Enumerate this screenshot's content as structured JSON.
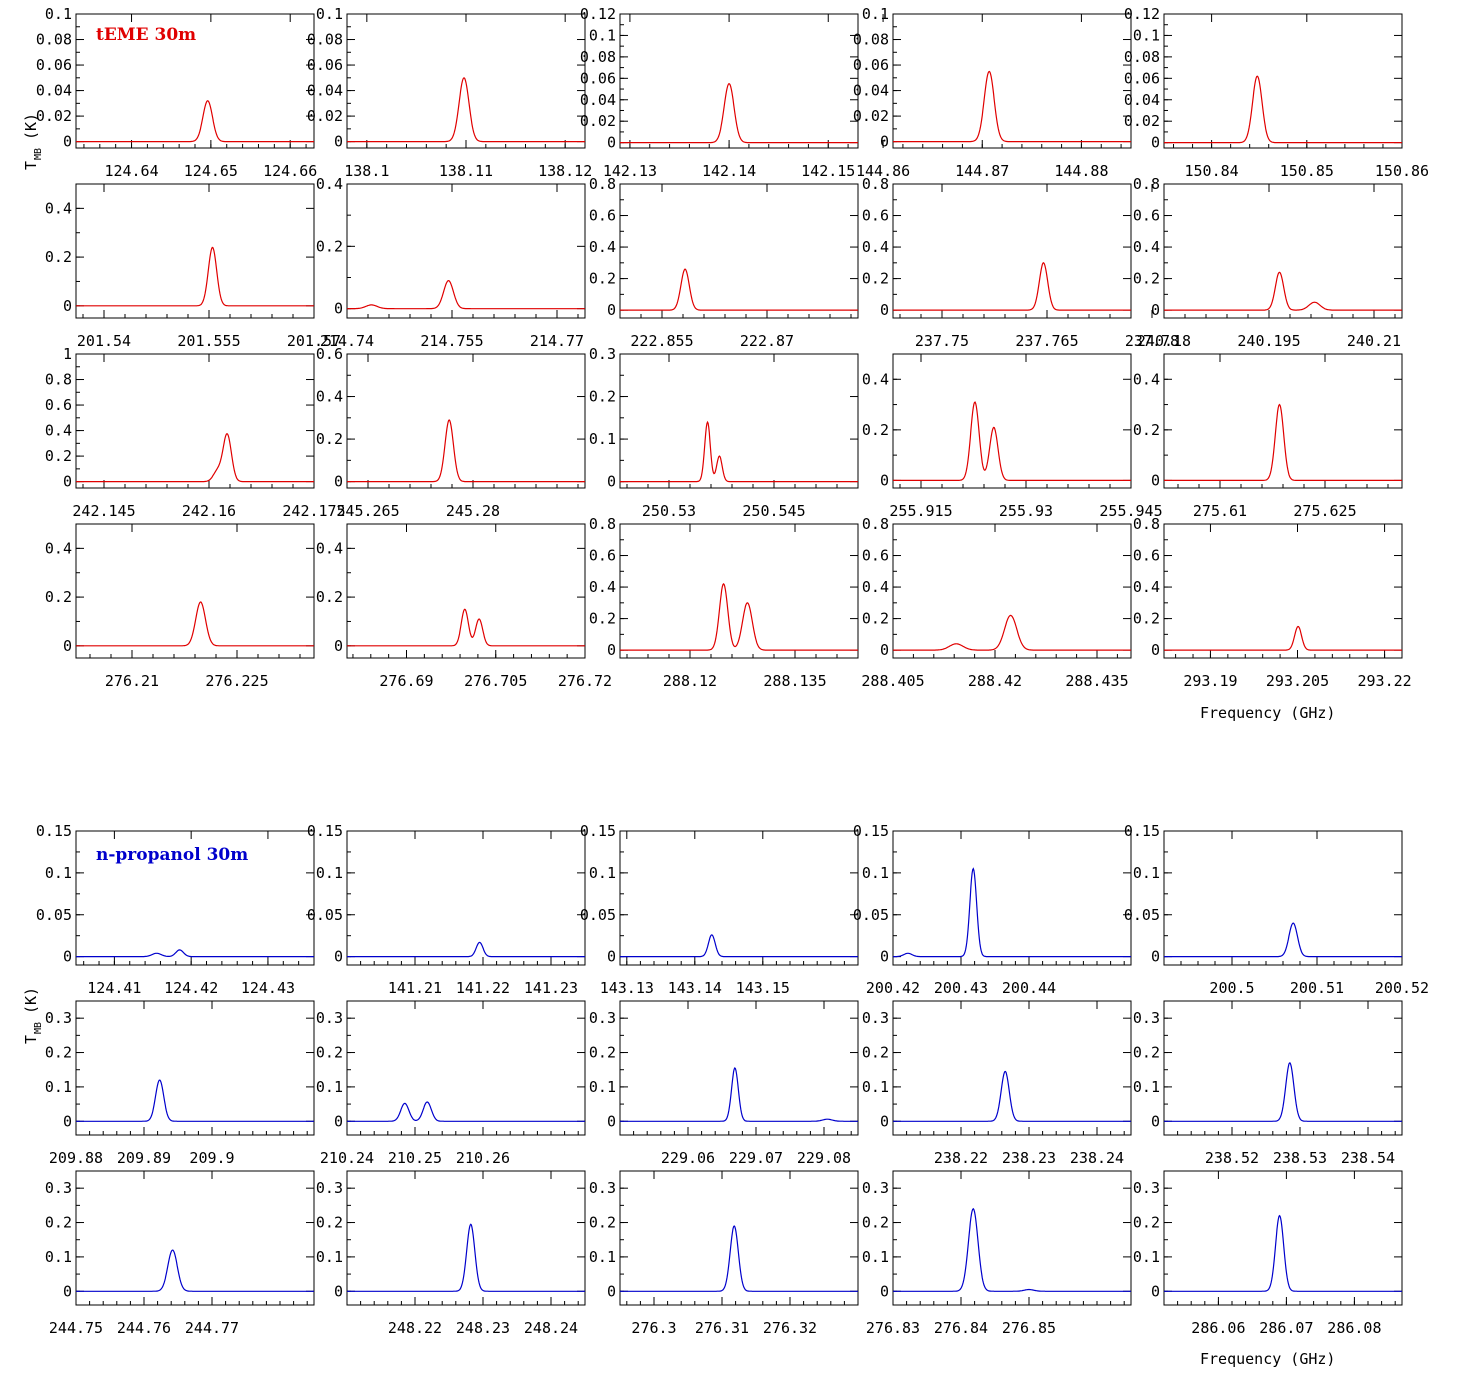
{
  "figure": {
    "xlabel": "Frequency (GHz)",
    "ylabel_main": "T",
    "ylabel_sub": "MB",
    "ylabel_unit": "(K)"
  },
  "colors": {
    "data": "#000000",
    "teme_model": "#e00000",
    "npropanol_model": "#0000cc"
  },
  "chart_data": [
    {
      "type": "line",
      "title": "tEME 30m",
      "title_color": "#e00000",
      "grid": false,
      "panels": [
        {
          "xlim": [
            124.633,
            124.663
          ],
          "ylim": [
            -0.005,
            0.1
          ],
          "yticks": [
            0,
            0.02,
            0.04,
            0.06,
            0.08,
            0.1
          ],
          "xticks": [
            124.64,
            124.65,
            124.66
          ],
          "lines": [
            {
              "x": 124.6496,
              "a": 0.032,
              "w": 0.0006
            }
          ]
        },
        {
          "xlim": [
            138.098,
            138.122
          ],
          "ylim": [
            -0.005,
            0.1
          ],
          "yticks": [
            0,
            0.02,
            0.04,
            0.06,
            0.08,
            0.1
          ],
          "xticks": [
            138.1,
            138.11,
            138.12
          ],
          "lines": [
            {
              "x": 138.1098,
              "a": 0.05,
              "w": 0.0005
            }
          ]
        },
        {
          "xlim": [
            142.129,
            142.153
          ],
          "ylim": [
            -0.005,
            0.12
          ],
          "yticks": [
            0,
            0.02,
            0.04,
            0.06,
            0.08,
            0.1,
            0.12
          ],
          "xticks": [
            142.13,
            142.14,
            142.15
          ],
          "lines": [
            {
              "x": 142.14,
              "a": 0.055,
              "w": 0.0005
            }
          ]
        },
        {
          "xlim": [
            144.861,
            144.885
          ],
          "ylim": [
            -0.005,
            0.1
          ],
          "yticks": [
            0,
            0.02,
            0.04,
            0.06,
            0.08,
            0.1
          ],
          "xticks": [
            144.86,
            144.87,
            144.88
          ],
          "lines": [
            {
              "x": 144.8707,
              "a": 0.055,
              "w": 0.0005
            }
          ]
        },
        {
          "xlim": [
            150.835,
            150.86
          ],
          "ylim": [
            -0.005,
            0.12
          ],
          "yticks": [
            0,
            0.02,
            0.04,
            0.06,
            0.08,
            0.1,
            0.12
          ],
          "xticks": [
            150.84,
            150.85,
            150.86
          ],
          "lines": [
            {
              "x": 150.8448,
              "a": 0.062,
              "w": 0.0005
            }
          ]
        },
        {
          "xlim": [
            201.536,
            201.57
          ],
          "ylim": [
            -0.05,
            0.5
          ],
          "yticks": [
            0,
            0.2,
            0.4
          ],
          "xticks": [
            201.54,
            201.555,
            201.57
          ],
          "lines": [
            {
              "x": 201.5555,
              "a": 0.24,
              "w": 0.0006
            }
          ]
        },
        {
          "xlim": [
            214.74,
            214.774
          ],
          "ylim": [
            -0.03,
            0.4
          ],
          "yticks": [
            0,
            0.2,
            0.4
          ],
          "xticks": [
            214.74,
            214.755,
            214.77
          ],
          "lines": [
            {
              "x": 214.7545,
              "a": 0.09,
              "w": 0.0007
            },
            {
              "x": 214.7435,
              "a": 0.012,
              "w": 0.0008
            }
          ]
        },
        {
          "xlim": [
            222.849,
            222.883
          ],
          "ylim": [
            -0.05,
            0.8
          ],
          "yticks": [
            0,
            0.2,
            0.4,
            0.6,
            0.8
          ],
          "xticks": [
            222.855,
            222.87
          ],
          "lines": [
            {
              "x": 222.8583,
              "a": 0.26,
              "w": 0.0006
            }
          ]
        },
        {
          "xlim": [
            237.743,
            237.777
          ],
          "ylim": [
            -0.05,
            0.8
          ],
          "yticks": [
            0,
            0.2,
            0.4,
            0.6,
            0.8
          ],
          "xticks": [
            237.75,
            237.765,
            237.78
          ],
          "lines": [
            {
              "x": 237.7645,
              "a": 0.3,
              "w": 0.0006
            }
          ]
        },
        {
          "xlim": [
            240.18,
            240.214
          ],
          "ylim": [
            -0.05,
            0.8
          ],
          "yticks": [
            0,
            0.2,
            0.4,
            0.6,
            0.8
          ],
          "xticks": [
            240.18,
            240.195,
            240.21
          ],
          "lines": [
            {
              "x": 240.1965,
              "a": 0.24,
              "w": 0.0006
            },
            {
              "x": 240.2015,
              "a": 0.05,
              "w": 0.0008
            }
          ]
        },
        {
          "xlim": [
            242.141,
            242.175
          ],
          "ylim": [
            -0.05,
            1.0
          ],
          "yticks": [
            0,
            0.2,
            0.4,
            0.6,
            0.8,
            1
          ],
          "xticks": [
            242.145,
            242.16,
            242.175
          ],
          "lines": [
            {
              "x": 242.1626,
              "a": 0.37,
              "w": 0.0006
            },
            {
              "x": 242.1612,
              "a": 0.08,
              "w": 0.0006
            }
          ]
        },
        {
          "xlim": [
            245.262,
            245.296
          ],
          "ylim": [
            -0.03,
            0.6
          ],
          "yticks": [
            0,
            0.2,
            0.4,
            0.6
          ],
          "xticks": [
            245.265,
            245.28
          ],
          "lines": [
            {
              "x": 245.2766,
              "a": 0.29,
              "w": 0.0006
            }
          ]
        },
        {
          "xlim": [
            250.523,
            250.557
          ],
          "ylim": [
            -0.015,
            0.3
          ],
          "yticks": [
            0,
            0.1,
            0.2,
            0.3
          ],
          "xticks": [
            250.53,
            250.545
          ],
          "lines": [
            {
              "x": 250.5355,
              "a": 0.14,
              "w": 0.0004
            },
            {
              "x": 250.5372,
              "a": 0.06,
              "w": 0.0004
            }
          ]
        },
        {
          "xlim": [
            255.911,
            255.945
          ],
          "ylim": [
            -0.03,
            0.5
          ],
          "yticks": [
            0,
            0.2,
            0.4
          ],
          "xticks": [
            255.915,
            255.93,
            255.945
          ],
          "lines": [
            {
              "x": 255.9227,
              "a": 0.31,
              "w": 0.0006
            },
            {
              "x": 255.9254,
              "a": 0.21,
              "w": 0.0006
            }
          ]
        },
        {
          "xlim": [
            275.602,
            275.636
          ],
          "ylim": [
            -0.03,
            0.5
          ],
          "yticks": [
            0,
            0.2,
            0.4
          ],
          "xticks": [
            275.61,
            275.625
          ],
          "lines": [
            {
              "x": 275.6185,
              "a": 0.3,
              "w": 0.0006
            }
          ]
        },
        {
          "xlim": [
            276.202,
            276.236
          ],
          "ylim": [
            -0.05,
            0.5
          ],
          "yticks": [
            0,
            0.2,
            0.4
          ],
          "xticks": [
            276.21,
            276.225
          ],
          "lines": [
            {
              "x": 276.2198,
              "a": 0.18,
              "w": 0.0007
            }
          ]
        },
        {
          "xlim": [
            276.68,
            276.72
          ],
          "ylim": [
            -0.05,
            0.5
          ],
          "yticks": [
            0,
            0.2,
            0.4
          ],
          "xticks": [
            276.69,
            276.705,
            276.72
          ],
          "lines": [
            {
              "x": 276.6998,
              "a": 0.15,
              "w": 0.0006
            },
            {
              "x": 276.7022,
              "a": 0.11,
              "w": 0.0006
            }
          ]
        },
        {
          "xlim": [
            288.11,
            288.144
          ],
          "ylim": [
            -0.05,
            0.8
          ],
          "yticks": [
            0,
            0.2,
            0.4,
            0.6,
            0.8
          ],
          "xticks": [
            288.12,
            288.135
          ],
          "lines": [
            {
              "x": 288.1248,
              "a": 0.42,
              "w": 0.0006
            },
            {
              "x": 288.1282,
              "a": 0.3,
              "w": 0.0007
            }
          ]
        },
        {
          "xlim": [
            288.405,
            288.44
          ],
          "ylim": [
            -0.05,
            0.8
          ],
          "yticks": [
            0,
            0.2,
            0.4,
            0.6,
            0.8
          ],
          "xticks": [
            288.405,
            288.42,
            288.435
          ],
          "lines": [
            {
              "x": 288.4223,
              "a": 0.22,
              "w": 0.0009
            },
            {
              "x": 288.4143,
              "a": 0.04,
              "w": 0.001
            }
          ]
        },
        {
          "xlim": [
            293.182,
            293.223
          ],
          "ylim": [
            -0.05,
            0.8
          ],
          "yticks": [
            0,
            0.2,
            0.4,
            0.6,
            0.8
          ],
          "xticks": [
            293.19,
            293.205,
            293.22
          ],
          "lines": [
            {
              "x": 293.2051,
              "a": 0.15,
              "w": 0.0006
            }
          ]
        }
      ]
    },
    {
      "type": "line",
      "title": "n-propanol 30m",
      "title_color": "#0000cc",
      "grid": false,
      "panels": [
        {
          "xlim": [
            124.405,
            124.436
          ],
          "ylim": [
            -0.01,
            0.15
          ],
          "yticks": [
            0,
            0.05,
            0.1,
            0.15
          ],
          "xticks": [
            124.41,
            124.42,
            124.43
          ],
          "lines": [
            {
              "x": 124.4185,
              "a": 0.008,
              "w": 0.0005
            },
            {
              "x": 124.4155,
              "a": 0.004,
              "w": 0.0006
            }
          ]
        },
        {
          "xlim": [
            141.2,
            141.235
          ],
          "ylim": [
            -0.01,
            0.15
          ],
          "yticks": [
            0,
            0.05,
            0.1,
            0.15
          ],
          "xticks": [
            141.21,
            141.22,
            141.23
          ],
          "lines": [
            {
              "x": 141.2195,
              "a": 0.017,
              "w": 0.0005
            }
          ]
        },
        {
          "xlim": [
            143.129,
            143.164
          ],
          "ylim": [
            -0.01,
            0.15
          ],
          "yticks": [
            0,
            0.05,
            0.1,
            0.15
          ],
          "xticks": [
            143.13,
            143.14,
            143.15
          ],
          "lines": [
            {
              "x": 143.1425,
              "a": 0.026,
              "w": 0.0005
            }
          ]
        },
        {
          "xlim": [
            200.42,
            200.455
          ],
          "ylim": [
            -0.01,
            0.15
          ],
          "yticks": [
            0,
            0.05,
            0.1,
            0.15
          ],
          "xticks": [
            200.42,
            200.43,
            200.44
          ],
          "lines": [
            {
              "x": 200.4318,
              "a": 0.105,
              "w": 0.0005
            },
            {
              "x": 200.4222,
              "a": 0.004,
              "w": 0.0006
            }
          ]
        },
        {
          "xlim": [
            200.492,
            200.52
          ],
          "ylim": [
            -0.01,
            0.15
          ],
          "yticks": [
            0,
            0.05,
            0.1,
            0.15
          ],
          "xticks": [
            200.5,
            200.51,
            200.52
          ],
          "lines": [
            {
              "x": 200.5072,
              "a": 0.04,
              "w": 0.0005
            }
          ]
        },
        {
          "xlim": [
            209.88,
            209.915
          ],
          "ylim": [
            -0.04,
            0.35
          ],
          "yticks": [
            0,
            0.1,
            0.2,
            0.3
          ],
          "xticks": [
            209.88,
            209.89,
            209.9
          ],
          "lines": [
            {
              "x": 209.8923,
              "a": 0.12,
              "w": 0.0006
            }
          ]
        },
        {
          "xlim": [
            210.24,
            210.275
          ],
          "ylim": [
            -0.04,
            0.35
          ],
          "yticks": [
            0,
            0.1,
            0.2,
            0.3
          ],
          "xticks": [
            210.24,
            210.25,
            210.26
          ],
          "lines": [
            {
              "x": 210.2485,
              "a": 0.052,
              "w": 0.0006
            },
            {
              "x": 210.2518,
              "a": 0.056,
              "w": 0.0006
            }
          ]
        },
        {
          "xlim": [
            229.05,
            229.085
          ],
          "ylim": [
            -0.04,
            0.35
          ],
          "yticks": [
            0,
            0.1,
            0.2,
            0.3
          ],
          "xticks": [
            229.06,
            229.07,
            229.08
          ],
          "lines": [
            {
              "x": 229.0669,
              "a": 0.155,
              "w": 0.0005
            },
            {
              "x": 229.0805,
              "a": 0.006,
              "w": 0.0007
            }
          ]
        },
        {
          "xlim": [
            238.21,
            238.245
          ],
          "ylim": [
            -0.04,
            0.35
          ],
          "yticks": [
            0,
            0.1,
            0.2,
            0.3
          ],
          "xticks": [
            238.22,
            238.23,
            238.24
          ],
          "lines": [
            {
              "x": 238.2265,
              "a": 0.145,
              "w": 0.0006
            }
          ]
        },
        {
          "xlim": [
            238.51,
            238.545
          ],
          "ylim": [
            -0.04,
            0.35
          ],
          "yticks": [
            0,
            0.1,
            0.2,
            0.3
          ],
          "xticks": [
            238.52,
            238.53,
            238.54
          ],
          "lines": [
            {
              "x": 238.5285,
              "a": 0.17,
              "w": 0.0006
            }
          ]
        },
        {
          "xlim": [
            244.75,
            244.785
          ],
          "ylim": [
            -0.04,
            0.35
          ],
          "yticks": [
            0,
            0.1,
            0.2,
            0.3
          ],
          "xticks": [
            244.75,
            244.76,
            244.77
          ],
          "lines": [
            {
              "x": 244.7642,
              "a": 0.12,
              "w": 0.0007
            }
          ]
        },
        {
          "xlim": [
            248.21,
            248.245
          ],
          "ylim": [
            -0.04,
            0.35
          ],
          "yticks": [
            0,
            0.1,
            0.2,
            0.3
          ],
          "xticks": [
            248.22,
            248.23,
            248.24
          ],
          "lines": [
            {
              "x": 248.2282,
              "a": 0.195,
              "w": 0.0006
            }
          ]
        },
        {
          "xlim": [
            276.295,
            276.33
          ],
          "ylim": [
            -0.04,
            0.35
          ],
          "yticks": [
            0,
            0.1,
            0.2,
            0.3
          ],
          "xticks": [
            276.3,
            276.31,
            276.32
          ],
          "lines": [
            {
              "x": 276.3118,
              "a": 0.19,
              "w": 0.0006
            }
          ]
        },
        {
          "xlim": [
            276.83,
            276.865
          ],
          "ylim": [
            -0.04,
            0.35
          ],
          "yticks": [
            0,
            0.1,
            0.2,
            0.3
          ],
          "xticks": [
            276.83,
            276.84,
            276.85
          ],
          "lines": [
            {
              "x": 276.8418,
              "a": 0.24,
              "w": 0.0007
            },
            {
              "x": 276.85,
              "a": 0.005,
              "w": 0.0007
            }
          ]
        },
        {
          "xlim": [
            286.052,
            286.087
          ],
          "ylim": [
            -0.04,
            0.35
          ],
          "yticks": [
            0,
            0.1,
            0.2,
            0.3
          ],
          "xticks": [
            286.06,
            286.07,
            286.08
          ],
          "lines": [
            {
              "x": 286.069,
              "a": 0.22,
              "w": 0.0006
            }
          ]
        }
      ]
    }
  ]
}
